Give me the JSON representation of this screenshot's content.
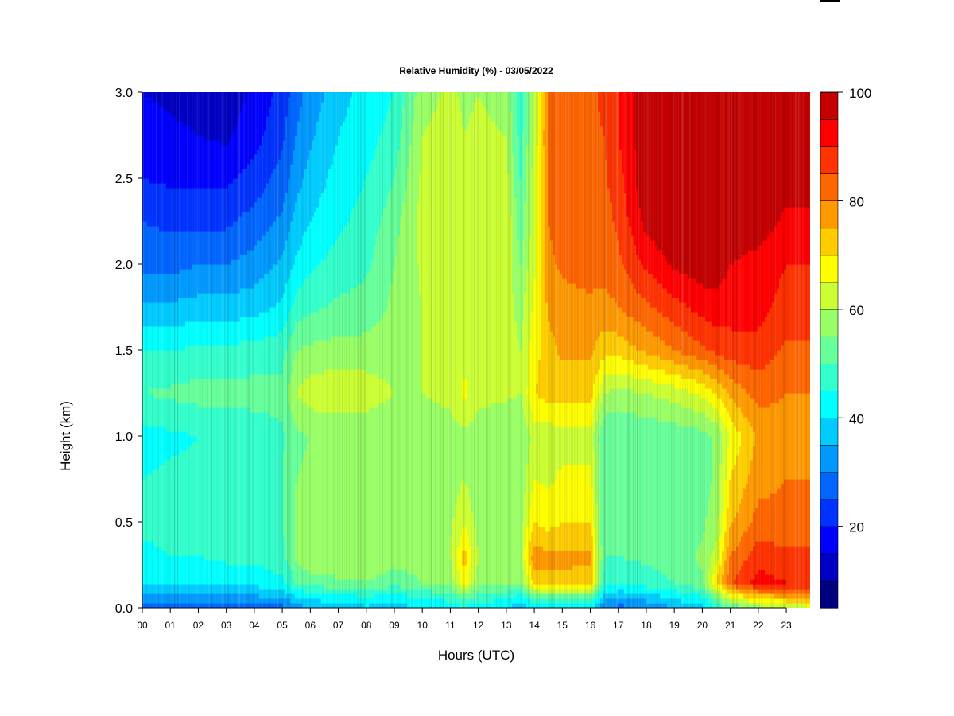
{
  "chart_data": {
    "type": "heatmap",
    "title": "Relative Humidity (%) - 03/05/2022",
    "xlabel": "Hours (UTC)",
    "ylabel": "Height (km)",
    "xlim": [
      0,
      23.85
    ],
    "ylim": [
      0,
      3.0
    ],
    "x_ticks": [
      "00",
      "01",
      "02",
      "03",
      "04",
      "05",
      "06",
      "07",
      "08",
      "09",
      "10",
      "11",
      "12",
      "13",
      "14",
      "15",
      "16",
      "17",
      "18",
      "19",
      "20",
      "21",
      "22",
      "23"
    ],
    "y_ticks": [
      "0.0",
      "0.5",
      "1.0",
      "1.5",
      "2.0",
      "2.5",
      "3.0"
    ],
    "colorbar": {
      "min": 5,
      "max": 100,
      "step": 5,
      "tick_values": [
        20,
        40,
        60,
        80,
        100
      ],
      "tick_labels": [
        "20",
        "40",
        "60",
        "80",
        "100"
      ],
      "colors": [
        "#00007F",
        "#0000C4",
        "#0000FF",
        "#0033FF",
        "#0066FF",
        "#0099FF",
        "#00CCFF",
        "#00FFFF",
        "#33FFCC",
        "#66FF99",
        "#99FF66",
        "#CCFF33",
        "#FFFF00",
        "#FFCC00",
        "#FF9900",
        "#FF6600",
        "#FF3300",
        "#FF0000",
        "#C40000",
        "#7F0000"
      ]
    },
    "height_levels_km": [
      0.0,
      0.05,
      0.15,
      0.3,
      0.5,
      0.75,
      1.0,
      1.25,
      1.5,
      1.75,
      2.0,
      2.25,
      2.5,
      2.75,
      3.0
    ],
    "time_hours": [
      0,
      0.5,
      1,
      1.5,
      2,
      2.5,
      3,
      3.5,
      4,
      4.5,
      5,
      5.5,
      6,
      6.5,
      7,
      7.5,
      8,
      8.5,
      9,
      9.5,
      10,
      10.5,
      11,
      11.5,
      12,
      12.5,
      13,
      13.5,
      14,
      14.5,
      15,
      15.5,
      16,
      16.5,
      17,
      17.5,
      18,
      18.5,
      19,
      19.5,
      20,
      20.5,
      21,
      21.5,
      22,
      22.5,
      23,
      23.5
    ],
    "rh_profiles": [
      {
        "t": 0,
        "rh": [
          28,
          33,
          40,
          44,
          46,
          45,
          43,
          50,
          45,
          36,
          28,
          25,
          20,
          17,
          15
        ]
      },
      {
        "t": 1,
        "rh": [
          27,
          33,
          42,
          45,
          46,
          46,
          44,
          51,
          45,
          36,
          28,
          24,
          19,
          16,
          14
        ]
      },
      {
        "t": 2,
        "rh": [
          27,
          32,
          41,
          45,
          46,
          46,
          45,
          52,
          46,
          37,
          30,
          24,
          19,
          15,
          13
        ]
      },
      {
        "t": 3,
        "rh": [
          26,
          32,
          42,
          46,
          47,
          47,
          46,
          52,
          46,
          37,
          30,
          24,
          19,
          14,
          12
        ]
      },
      {
        "t": 4,
        "rh": [
          27,
          33,
          42,
          46,
          48,
          48,
          47,
          52,
          47,
          38,
          32,
          27,
          22,
          18,
          16
        ]
      },
      {
        "t": 5,
        "rh": [
          28,
          34,
          44,
          48,
          50,
          50,
          49,
          52,
          48,
          41,
          36,
          31,
          27,
          24,
          22
        ]
      },
      {
        "t": 5.5,
        "rh": [
          32,
          38,
          50,
          56,
          56,
          55,
          54,
          60,
          55,
          47,
          41,
          37,
          33,
          30,
          28
        ]
      },
      {
        "t": 6,
        "rh": [
          35,
          40,
          52,
          60,
          58,
          56,
          55,
          63,
          56,
          49,
          44,
          40,
          37,
          34,
          32
        ]
      },
      {
        "t": 7,
        "rh": [
          38,
          42,
          54,
          60,
          59,
          57,
          56,
          64,
          57,
          51,
          47,
          44,
          42,
          40,
          38
        ]
      },
      {
        "t": 8,
        "rh": [
          39,
          43,
          55,
          60,
          58,
          57,
          56,
          63,
          57,
          52,
          49,
          47,
          45,
          43,
          42
        ]
      },
      {
        "t": 9,
        "rh": [
          38,
          42,
          52,
          57,
          56,
          56,
          55,
          60,
          58,
          56,
          55,
          53,
          50,
          47,
          45
        ]
      },
      {
        "t": 10,
        "rh": [
          40,
          44,
          55,
          58,
          57,
          57,
          56,
          60,
          60,
          60,
          61,
          62,
          61,
          60,
          58
        ]
      },
      {
        "t": 11,
        "rh": [
          42,
          46,
          57,
          60,
          59,
          58,
          57,
          62,
          62,
          63,
          63,
          63,
          62,
          62,
          61
        ]
      },
      {
        "t": 11.5,
        "rh": [
          44,
          50,
          68,
          72,
          64,
          60,
          59,
          66,
          64,
          63,
          62,
          62,
          61,
          60,
          59
        ]
      },
      {
        "t": 12,
        "rh": [
          41,
          47,
          57,
          60,
          58,
          57,
          57,
          62,
          62,
          62,
          62,
          63,
          62,
          61,
          60
        ]
      },
      {
        "t": 13,
        "rh": [
          40,
          45,
          56,
          59,
          57,
          56,
          55,
          61,
          62,
          63,
          63,
          64,
          62,
          60,
          58
        ]
      },
      {
        "t": 13.5,
        "rh": [
          36,
          42,
          55,
          60,
          58,
          56,
          55,
          60,
          60,
          58,
          55,
          52,
          50,
          48,
          46
        ]
      },
      {
        "t": 14,
        "rh": [
          40,
          48,
          72,
          78,
          70,
          65,
          62,
          70,
          68,
          66,
          64,
          63,
          62,
          61,
          60
        ]
      },
      {
        "t": 14.5,
        "rh": [
          42,
          50,
          74,
          76,
          68,
          64,
          62,
          72,
          73,
          76,
          79,
          80,
          80,
          81,
          80
        ]
      },
      {
        "t": 15,
        "rh": [
          42,
          50,
          74,
          76,
          70,
          66,
          63,
          72,
          76,
          78,
          81,
          82,
          82,
          83,
          82
        ]
      },
      {
        "t": 16,
        "rh": [
          42,
          50,
          73,
          76,
          70,
          66,
          63,
          72,
          76,
          79,
          82,
          82,
          83,
          84,
          84
        ]
      },
      {
        "t": 16.5,
        "rh": [
          30,
          36,
          48,
          50,
          50,
          50,
          50,
          60,
          72,
          78,
          82,
          83,
          84,
          85,
          86
        ]
      },
      {
        "t": 17,
        "rh": [
          28,
          34,
          46,
          50,
          50,
          50,
          50,
          58,
          72,
          80,
          84,
          86,
          88,
          90,
          90
        ]
      },
      {
        "t": 18,
        "rh": [
          30,
          36,
          48,
          51,
          51,
          51,
          51,
          60,
          76,
          84,
          91,
          97,
          99,
          99,
          99
        ]
      },
      {
        "t": 19,
        "rh": [
          35,
          40,
          50,
          52,
          52,
          52,
          52,
          62,
          80,
          88,
          96,
          99,
          99,
          99,
          99
        ]
      },
      {
        "t": 20,
        "rh": [
          38,
          43,
          54,
          56,
          54,
          53,
          53,
          66,
          84,
          92,
          98,
          99,
          99,
          99,
          99
        ]
      },
      {
        "t": 20.5,
        "rh": [
          45,
          52,
          70,
          62,
          58,
          56,
          56,
          70,
          86,
          93,
          98,
          99,
          99,
          99,
          99
        ]
      },
      {
        "t": 21,
        "rh": [
          50,
          62,
          84,
          80,
          74,
          70,
          66,
          76,
          88,
          92,
          95,
          99,
          99,
          99,
          99
        ]
      },
      {
        "t": 22,
        "rh": [
          56,
          70,
          92,
          88,
          82,
          78,
          76,
          82,
          88,
          92,
          93,
          98,
          99,
          99,
          99
        ]
      },
      {
        "t": 23,
        "rh": [
          60,
          72,
          90,
          86,
          82,
          80,
          78,
          80,
          84,
          88,
          90,
          94,
          97,
          98,
          98
        ]
      },
      {
        "t": 23.85,
        "rh": [
          62,
          74,
          90,
          86,
          82,
          80,
          78,
          80,
          84,
          88,
          90,
          94,
          97,
          98,
          98
        ]
      }
    ]
  }
}
